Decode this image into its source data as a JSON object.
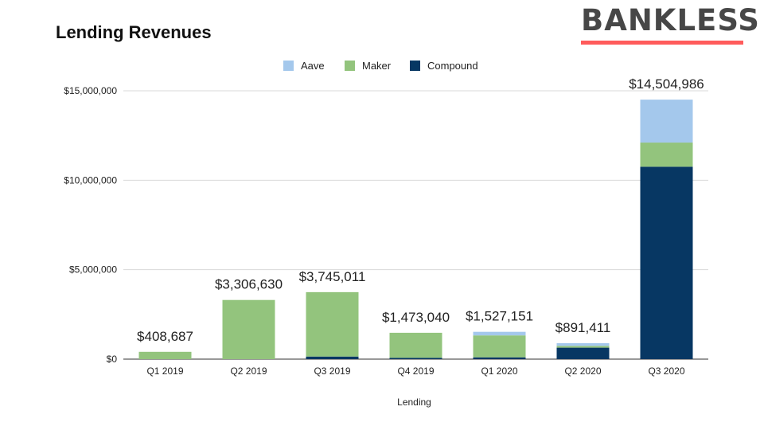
{
  "chart_data": {
    "type": "bar",
    "stacked": true,
    "title": "Lending Revenues",
    "xlabel": "Lending",
    "ylabel": "",
    "ylim": [
      0,
      15000000
    ],
    "yticks": [
      0,
      5000000,
      10000000,
      15000000
    ],
    "ytick_labels": [
      "$0",
      "$5,000,000",
      "$10,000,000",
      "$15,000,000"
    ],
    "grid": true,
    "legend_position": "top",
    "categories": [
      "Q1 2019",
      "Q2 2019",
      "Q3 2019",
      "Q4 2019",
      "Q1 2020",
      "Q2 2020",
      "Q3 2020"
    ],
    "series": [
      {
        "name": "Aave",
        "color": "#a4c8ec",
        "values": [
          0,
          0,
          0,
          0,
          200000,
          150000,
          2400000
        ]
      },
      {
        "name": "Maker",
        "color": "#93c47d",
        "values": [
          408687,
          3306630,
          3600000,
          1400000,
          1227151,
          100000,
          1350000
        ]
      },
      {
        "name": "Compound",
        "color": "#073763",
        "values": [
          0,
          0,
          145011,
          73040,
          100000,
          641411,
          10754986
        ]
      }
    ],
    "totals": [
      "$408,687",
      "$3,306,630",
      "$3,745,011",
      "$1,473,040",
      "$1,527,151",
      "$891,411",
      "$14,504,986"
    ]
  },
  "brand": {
    "name": "BANKLESS",
    "text_color": "#474747",
    "accent_color": "#ff5b5b"
  }
}
